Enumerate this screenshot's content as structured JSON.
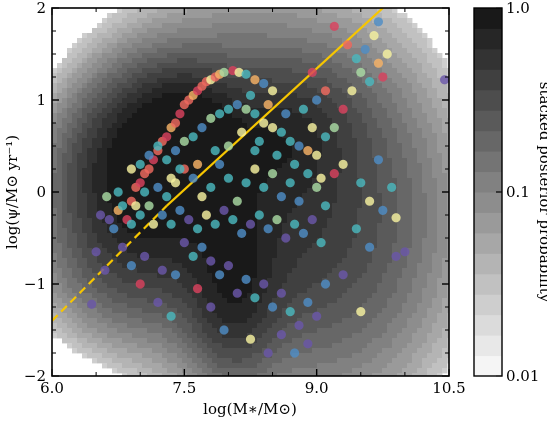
{
  "chart_data": {
    "type": "scatter",
    "title": "",
    "xlabel": "log(M∗/M⊙)",
    "ylabel": "log(ψ/M⊙ yr⁻¹)",
    "xlim": [
      6.0,
      10.5
    ],
    "ylim": [
      -2,
      2
    ],
    "x_ticks": [
      "6.0",
      "7.5",
      "9.0",
      "10.5"
    ],
    "y_ticks": [
      "−2",
      "−1",
      "0",
      "1",
      "2"
    ],
    "grid": false,
    "background_density": {
      "description_kind": "stacked posterior contours",
      "peaks": [
        {
          "x": 7.1,
          "y": 0.3,
          "sx": 0.55,
          "sy": 0.5,
          "rot": 0.75,
          "w": 1.0
        },
        {
          "x": 7.5,
          "y": 0.7,
          "sx": 0.35,
          "sy": 0.35,
          "rot": 0.5,
          "w": 0.6
        },
        {
          "x": 8.05,
          "y": -1.0,
          "sx": 0.3,
          "sy": 0.55,
          "rot": 0.0,
          "w": 0.55
        },
        {
          "x": 8.1,
          "y": 0.0,
          "sx": 0.9,
          "sy": 1.0,
          "rot": 0.2,
          "w": 0.45
        },
        {
          "x": 8.6,
          "y": 0.6,
          "sx": 0.5,
          "sy": 0.4,
          "rot": 0.4,
          "w": 0.35
        },
        {
          "x": 9.2,
          "y": -0.3,
          "sx": 0.8,
          "sy": 1.1,
          "rot": 0.0,
          "w": 0.25
        },
        {
          "x": 7.0,
          "y": -0.6,
          "sx": 0.6,
          "sy": 0.5,
          "rot": 0.3,
          "w": 0.3
        }
      ]
    },
    "relations": [
      {
        "kind": "line",
        "color": "#f7c600",
        "x": [
          7.3,
          9.75
        ],
        "y": [
          -0.15,
          2.0
        ],
        "style": "solid"
      },
      {
        "kind": "line",
        "color": "#f7c600",
        "x": [
          6.0,
          7.3
        ],
        "y": [
          -1.4,
          -0.15
        ],
        "style": "dashed"
      }
    ],
    "points": [
      [
        6.55,
        -0.25,
        0.05
      ],
      [
        6.62,
        -0.05,
        0.4
      ],
      [
        6.5,
        -0.65,
        0.05
      ],
      [
        6.45,
        -1.22,
        0.0
      ],
      [
        6.7,
        -0.4,
        0.2
      ],
      [
        6.75,
        -0.2,
        0.7
      ],
      [
        6.8,
        -0.6,
        0.1
      ],
      [
        6.85,
        -0.3,
        0.9
      ],
      [
        6.9,
        -0.1,
        0.85
      ],
      [
        6.95,
        0.05,
        0.8
      ],
      [
        7.0,
        0.1,
        0.9
      ],
      [
        7.05,
        0.2,
        0.85
      ],
      [
        7.1,
        0.25,
        0.75
      ],
      [
        7.15,
        0.35,
        0.9
      ],
      [
        7.2,
        0.45,
        0.85
      ],
      [
        7.25,
        0.55,
        0.8
      ],
      [
        7.3,
        0.6,
        0.9
      ],
      [
        7.35,
        0.7,
        0.7
      ],
      [
        7.4,
        0.75,
        0.85
      ],
      [
        7.45,
        0.85,
        0.9
      ],
      [
        7.5,
        0.95,
        0.8
      ],
      [
        7.55,
        1.0,
        0.85
      ],
      [
        7.6,
        1.05,
        0.7
      ],
      [
        7.65,
        1.1,
        0.9
      ],
      [
        7.7,
        1.15,
        0.75
      ],
      [
        7.75,
        1.2,
        0.8
      ],
      [
        7.8,
        1.22,
        0.6
      ],
      [
        7.85,
        1.25,
        0.85
      ],
      [
        7.9,
        1.28,
        0.7
      ],
      [
        7.95,
        1.3,
        0.4
      ],
      [
        8.05,
        1.32,
        0.95
      ],
      [
        8.12,
        1.3,
        0.55
      ],
      [
        8.2,
        1.28,
        0.3
      ],
      [
        8.3,
        1.22,
        0.7
      ],
      [
        8.4,
        1.18,
        0.2
      ],
      [
        8.5,
        1.1,
        0.5
      ],
      [
        6.9,
        0.25,
        0.6
      ],
      [
        7.0,
        0.3,
        0.3
      ],
      [
        7.1,
        0.4,
        0.2
      ],
      [
        7.2,
        0.5,
        0.35
      ],
      [
        7.3,
        0.35,
        0.25
      ],
      [
        7.4,
        0.45,
        0.15
      ],
      [
        7.5,
        0.55,
        0.4
      ],
      [
        7.6,
        0.6,
        0.3
      ],
      [
        7.7,
        0.7,
        0.2
      ],
      [
        7.8,
        0.8,
        0.45
      ],
      [
        7.9,
        0.85,
        0.35
      ],
      [
        8.0,
        0.9,
        0.25
      ],
      [
        8.1,
        0.95,
        0.15
      ],
      [
        8.2,
        0.9,
        0.4
      ],
      [
        8.3,
        0.85,
        0.3
      ],
      [
        8.4,
        0.75,
        0.5
      ],
      [
        8.5,
        0.7,
        0.6
      ],
      [
        8.6,
        0.65,
        0.35
      ],
      [
        8.7,
        0.55,
        0.3
      ],
      [
        8.8,
        0.5,
        0.2
      ],
      [
        8.9,
        0.45,
        0.65
      ],
      [
        9.0,
        0.4,
        0.5
      ],
      [
        9.1,
        0.6,
        0.3
      ],
      [
        9.2,
        0.7,
        0.45
      ],
      [
        9.3,
        0.9,
        0.95
      ],
      [
        9.4,
        1.1,
        0.6
      ],
      [
        9.5,
        1.3,
        0.4
      ],
      [
        9.6,
        1.2,
        0.25
      ],
      [
        9.7,
        1.4,
        0.65
      ],
      [
        9.75,
        1.25,
        0.95
      ],
      [
        9.8,
        1.5,
        0.6
      ],
      [
        9.55,
        1.55,
        0.2
      ],
      [
        9.0,
        1.0,
        0.2
      ],
      [
        9.1,
        1.1,
        0.8
      ],
      [
        8.95,
        1.3,
        0.95
      ],
      [
        9.2,
        1.8,
        0.95
      ],
      [
        9.35,
        1.6,
        0.8
      ],
      [
        9.45,
        1.45,
        0.35
      ],
      [
        9.65,
        1.7,
        0.6
      ],
      [
        9.7,
        1.85,
        0.2
      ],
      [
        10.45,
        1.22,
        0.0
      ],
      [
        9.9,
        -0.28,
        0.6
      ],
      [
        9.85,
        0.05,
        0.3
      ],
      [
        9.75,
        -0.2,
        0.15
      ],
      [
        9.6,
        -0.1,
        0.5
      ],
      [
        9.5,
        0.1,
        0.3
      ],
      [
        9.3,
        0.3,
        0.55
      ],
      [
        9.2,
        0.2,
        0.9
      ],
      [
        9.1,
        -0.15,
        0.3
      ],
      [
        9.0,
        0.05,
        0.45
      ],
      [
        8.9,
        0.2,
        0.25
      ],
      [
        8.8,
        -0.1,
        0.2
      ],
      [
        8.7,
        0.1,
        0.35
      ],
      [
        8.6,
        -0.05,
        0.15
      ],
      [
        8.5,
        0.2,
        0.45
      ],
      [
        8.4,
        0.05,
        0.3
      ],
      [
        8.3,
        0.25,
        0.6
      ],
      [
        8.2,
        0.1,
        0.25
      ],
      [
        8.1,
        -0.1,
        0.4
      ],
      [
        8.0,
        0.15,
        0.3
      ],
      [
        7.9,
        0.3,
        0.15
      ],
      [
        7.8,
        0.05,
        0.35
      ],
      [
        7.7,
        -0.05,
        0.6
      ],
      [
        7.6,
        0.15,
        0.2
      ],
      [
        7.5,
        0.25,
        0.75
      ],
      [
        7.4,
        0.1,
        0.5
      ],
      [
        7.3,
        -0.05,
        0.3
      ],
      [
        7.2,
        0.05,
        0.15
      ],
      [
        7.1,
        -0.15,
        0.45
      ],
      [
        7.0,
        -0.25,
        0.3
      ],
      [
        6.9,
        -0.35,
        0.25
      ],
      [
        6.8,
        -0.15,
        0.3
      ],
      [
        7.15,
        -0.35,
        0.6
      ],
      [
        7.25,
        -0.25,
        0.2
      ],
      [
        7.35,
        -0.35,
        0.35
      ],
      [
        7.45,
        -0.2,
        0.2
      ],
      [
        7.55,
        -0.3,
        0.1
      ],
      [
        7.65,
        -0.4,
        0.3
      ],
      [
        7.75,
        -0.25,
        0.5
      ],
      [
        7.85,
        -0.35,
        0.25
      ],
      [
        7.95,
        -0.2,
        0.1
      ],
      [
        8.05,
        -0.3,
        0.35
      ],
      [
        8.15,
        -0.45,
        0.2
      ],
      [
        8.25,
        -0.35,
        0.05
      ],
      [
        8.35,
        -0.25,
        0.3
      ],
      [
        8.45,
        -0.4,
        0.15
      ],
      [
        8.55,
        -0.3,
        0.4
      ],
      [
        8.65,
        -0.5,
        0.1
      ],
      [
        8.75,
        -0.35,
        0.25
      ],
      [
        8.85,
        -0.45,
        0.15
      ],
      [
        8.95,
        -0.3,
        0.05
      ],
      [
        9.05,
        -0.55,
        0.3
      ],
      [
        7.5,
        -0.55,
        0.05
      ],
      [
        7.6,
        -0.7,
        0.25
      ],
      [
        7.7,
        -0.6,
        0.15
      ],
      [
        7.8,
        -0.75,
        0.05
      ],
      [
        7.9,
        -0.9,
        0.2
      ],
      [
        8.0,
        -0.8,
        0.1
      ],
      [
        8.1,
        -1.1,
        0.0
      ],
      [
        8.2,
        -0.95,
        0.15
      ],
      [
        8.3,
        -1.15,
        0.3
      ],
      [
        8.4,
        -1.0,
        0.05
      ],
      [
        8.5,
        -1.25,
        0.2
      ],
      [
        8.6,
        -1.1,
        0.1
      ],
      [
        8.7,
        -1.3,
        0.35
      ],
      [
        8.8,
        -1.45,
        0.0
      ],
      [
        8.9,
        -1.2,
        0.15
      ],
      [
        9.0,
        -1.35,
        0.05
      ],
      [
        7.65,
        -1.05,
        0.9
      ],
      [
        7.8,
        -1.25,
        0.05
      ],
      [
        7.95,
        -1.5,
        0.15
      ],
      [
        8.25,
        -1.6,
        0.55
      ],
      [
        8.45,
        -1.75,
        0.1
      ],
      [
        8.6,
        -1.55,
        0.05
      ],
      [
        8.75,
        -1.75,
        0.15
      ],
      [
        8.9,
        -1.65,
        0.0
      ],
      [
        7.35,
        -1.35,
        0.25
      ],
      [
        7.2,
        -1.2,
        0.1
      ],
      [
        7.25,
        -0.85,
        0.05
      ],
      [
        7.4,
        -0.9,
        0.2
      ],
      [
        6.9,
        -0.8,
        0.15
      ],
      [
        7.05,
        -0.7,
        0.05
      ],
      [
        6.6,
        -0.85,
        0.0
      ],
      [
        7.0,
        -1.0,
        0.9
      ],
      [
        9.3,
        -0.9,
        0.05
      ],
      [
        9.1,
        -1.0,
        0.15
      ],
      [
        9.6,
        -0.6,
        0.2
      ],
      [
        9.9,
        -0.7,
        0.1
      ],
      [
        10.0,
        -0.65,
        0.05
      ],
      [
        9.5,
        -1.3,
        0.5
      ],
      [
        9.45,
        -0.4,
        0.3
      ],
      [
        9.7,
        0.35,
        0.2
      ],
      [
        8.25,
        1.05,
        0.35
      ],
      [
        8.35,
        0.55,
        0.25
      ],
      [
        8.15,
        0.65,
        0.55
      ],
      [
        8.0,
        0.5,
        0.4
      ],
      [
        7.85,
        0.45,
        0.25
      ],
      [
        7.65,
        0.3,
        0.65
      ],
      [
        7.45,
        0.25,
        0.3
      ],
      [
        7.35,
        0.15,
        0.55
      ],
      [
        7.05,
        0.0,
        0.3
      ],
      [
        6.95,
        -0.15,
        0.55
      ],
      [
        6.75,
        0.0,
        0.25
      ],
      [
        6.65,
        -0.3,
        0.1
      ],
      [
        8.55,
        0.4,
        0.3
      ],
      [
        8.75,
        0.3,
        0.25
      ],
      [
        8.65,
        0.85,
        0.2
      ],
      [
        8.85,
        0.9,
        0.3
      ],
      [
        8.95,
        0.7,
        0.55
      ],
      [
        9.05,
        0.15,
        0.6
      ],
      [
        8.45,
        0.95,
        0.65
      ],
      [
        8.3,
        0.45,
        0.3
      ]
    ],
    "point_colors": [
      "#6a57a8",
      "#4e8cc4",
      "#4ab7bd",
      "#a9dba3",
      "#f7f2a0",
      "#f6b266",
      "#ef6a5f",
      "#d9425e"
    ],
    "colorbar": {
      "label": "stacked posterior probability",
      "ticks": [
        "1.0",
        "0.1",
        "0.01"
      ],
      "levels": 18
    },
    "legend": "none"
  }
}
